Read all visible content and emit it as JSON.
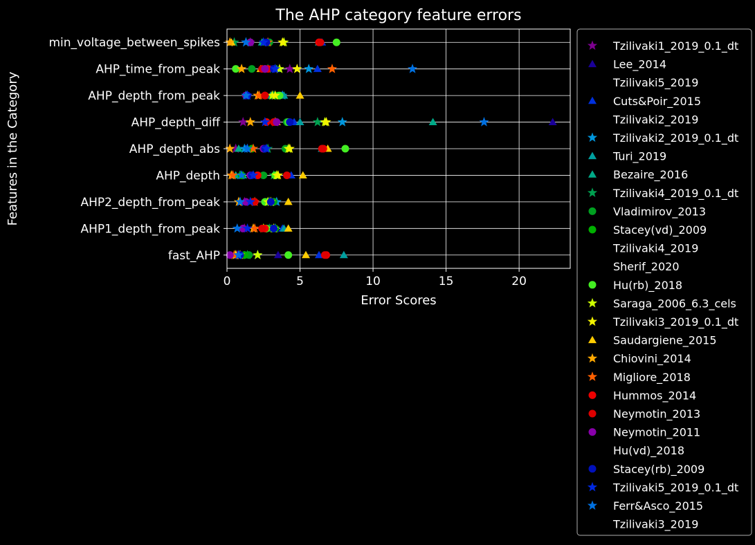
{
  "chart_data": {
    "type": "scatter",
    "title": "The AHP category feature errors",
    "xlabel": "Error Scores",
    "ylabel": "Features in the Category",
    "xlim": [
      0,
      23.5
    ],
    "xticks": [
      "0",
      "5",
      "10",
      "15",
      "20"
    ],
    "xtick_values": [
      0,
      5,
      10,
      15,
      20
    ],
    "grid": true,
    "legend_placement": "outside-right",
    "background": "#000000",
    "categories": [
      "fast_AHP",
      "AHP1_depth_from_peak",
      "AHP2_depth_from_peak",
      "AHP_depth",
      "AHP_depth_abs",
      "AHP_depth_diff",
      "AHP_depth_from_peak",
      "AHP_time_from_peak",
      "min_voltage_between_spikes"
    ],
    "series": [
      {
        "name": "Tzilivaki1_2019_0.1_dt",
        "marker": "star",
        "color": "#7d008f",
        "values": [
          0.7,
          1.2,
          1.2,
          0.4,
          0.6,
          1.1,
          1.4,
          4.3,
          1.6
        ]
      },
      {
        "name": "Lee_2014",
        "marker": "triangle",
        "color": "#1a0099",
        "values": [
          3.5,
          2.6,
          0.9,
          2.0,
          2.6,
          22.3,
          3.1,
          3.0,
          2.8
        ]
      },
      {
        "name": "Tzilivaki5_2019",
        "marker": "none",
        "color": "#ffffff",
        "values": []
      },
      {
        "name": "Cuts&Poir_2015",
        "marker": "triangle",
        "color": "#0030dd",
        "values": [
          6.3,
          3.8,
          3.3,
          4.4,
          1.3,
          4.6,
          3.7,
          6.2,
          6.5
        ]
      },
      {
        "name": "Tzilivaki2_2019",
        "marker": "none",
        "color": "#ffffff",
        "values": []
      },
      {
        "name": "Tzilivaki2_2019_0.1_dt",
        "marker": "star",
        "color": "#0096dd",
        "values": [
          2.1,
          3.3,
          3.4,
          0.9,
          1.2,
          7.9,
          3.8,
          5.6,
          1.3
        ]
      },
      {
        "name": "Turi_2019",
        "marker": "triangle",
        "color": "#00a0a0",
        "values": [
          8.0,
          3.9,
          2.9,
          1.1,
          6.5,
          5.0,
          3.9,
          2.4,
          6.3
        ]
      },
      {
        "name": "Bezaire_2016",
        "marker": "triangle",
        "color": "#00aa88",
        "values": [
          1.2,
          3.0,
          2.7,
          0.6,
          0.8,
          14.1,
          3.0,
          3.4,
          2.4
        ]
      },
      {
        "name": "Tzilivaki4_2019_0.1_dt",
        "marker": "star",
        "color": "#00a050",
        "values": [
          1.4,
          2.9,
          2.9,
          3.2,
          2.8,
          6.2,
          3.2,
          2.8,
          0.5
        ]
      },
      {
        "name": "Vladimirov_2013",
        "marker": "circle",
        "color": "#00a020",
        "values": [
          1.5,
          3.1,
          3.2,
          2.5,
          4.0,
          4.1,
          3.3,
          1.7,
          2.9
        ]
      },
      {
        "name": "Stacey(vd)_2009",
        "marker": "circle",
        "color": "#00b000",
        "values": [
          1.2,
          3.3,
          3.1,
          1.0,
          1.7,
          2.7,
          3.5,
          2.6,
          1.6
        ]
      },
      {
        "name": "Tzilivaki4_2019",
        "marker": "none",
        "color": "#ffffff",
        "values": []
      },
      {
        "name": "Sherif_2020",
        "marker": "none",
        "color": "#ffffff",
        "values": []
      },
      {
        "name": "Hu(rb)_2018",
        "marker": "circle",
        "color": "#44ee22",
        "values": [
          4.2,
          2.7,
          2.6,
          3.3,
          8.1,
          4.2,
          3.6,
          0.6,
          7.5
        ]
      },
      {
        "name": "Saraga_2006_6.3_cels",
        "marker": "star",
        "color": "#ccff00",
        "values": [
          2.1,
          2.5,
          2.8,
          3.4,
          4.2,
          6.7,
          3.1,
          3.6,
          3.9
        ]
      },
      {
        "name": "Tzilivaki3_2019_0.1_dt",
        "marker": "star",
        "color": "#f2f200",
        "values": [
          0.6,
          3.2,
          3.0,
          3.5,
          4.3,
          6.8,
          3.3,
          4.8,
          3.8
        ]
      },
      {
        "name": "Saudargiene_2015",
        "marker": "triangle",
        "color": "#ffcc00",
        "values": [
          5.4,
          4.2,
          4.2,
          5.2,
          6.9,
          3.4,
          5.0,
          2.3,
          0.3
        ]
      },
      {
        "name": "Chiovini_2014",
        "marker": "star",
        "color": "#ffa800",
        "values": [
          0.9,
          1.8,
          0.8,
          0.3,
          0.2,
          1.6,
          2.1,
          1.0,
          0.2
        ]
      },
      {
        "name": "Migliore_2018",
        "marker": "star",
        "color": "#ff6000",
        "values": [
          0.5,
          1.9,
          1.9,
          0.4,
          1.8,
          3.3,
          2.2,
          7.2,
          2.8
        ]
      },
      {
        "name": "Hummos_2014",
        "marker": "circle",
        "color": "#ee0000",
        "values": [
          6.8,
          2.6,
          1.9,
          2.1,
          6.6,
          2.7,
          2.6,
          2.8,
          6.3
        ]
      },
      {
        "name": "Neymotin_2013",
        "marker": "circle",
        "color": "#dd0000",
        "values": [
          6.7,
          2.4,
          1.8,
          4.1,
          6.5,
          3.2,
          2.6,
          2.4,
          6.4
        ]
      },
      {
        "name": "Neymotin_2011",
        "marker": "circle",
        "color": "#8800aa",
        "values": [
          0.2,
          1.1,
          1.3,
          1.6,
          2.5,
          3.4,
          1.3,
          2.6,
          1.6
        ]
      },
      {
        "name": "Hu(vd)_2018",
        "marker": "none",
        "color": "#ffffff",
        "values": []
      },
      {
        "name": "Stacey(rb)_2009",
        "marker": "circle",
        "color": "#0010bb",
        "values": [
          0.9,
          3.2,
          3.0,
          1.7,
          2.6,
          4.3,
          1.4,
          3.2,
          2.7
        ]
      },
      {
        "name": "Tzilivaki5_2019_0.1_dt",
        "marker": "star",
        "color": "#0028e0",
        "values": [
          0.8,
          1.4,
          1.6,
          1.8,
          2.7,
          2.6,
          1.4,
          3.3,
          2.5
        ]
      },
      {
        "name": "Ferr&Asco_2015",
        "marker": "star",
        "color": "#0070e0",
        "values": [
          0.8,
          0.7,
          0.9,
          1.0,
          1.4,
          17.6,
          1.3,
          12.7,
          1.3
        ]
      },
      {
        "name": "Tzilivaki3_2019",
        "marker": "none",
        "color": "#ffffff",
        "values": []
      }
    ]
  }
}
